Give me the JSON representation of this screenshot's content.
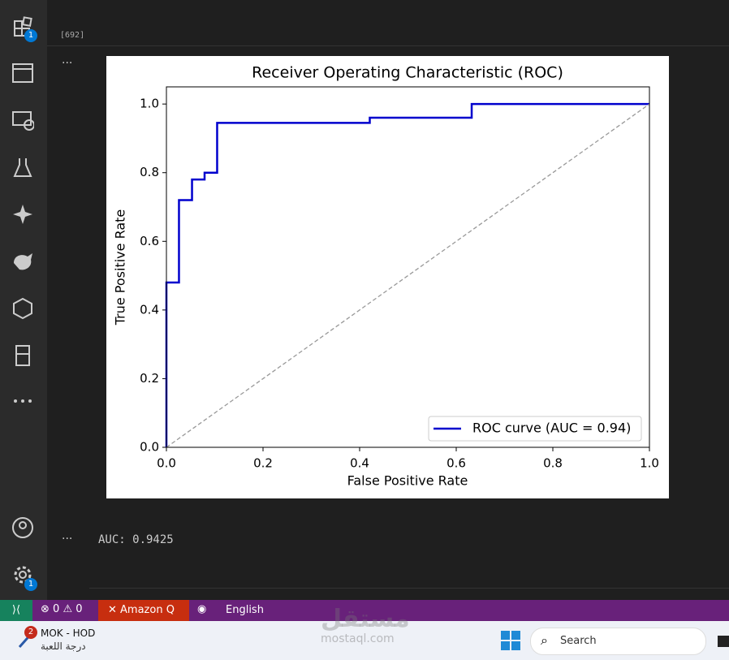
{
  "activity_bar": {
    "badges": [
      "1",
      "1"
    ]
  },
  "cell": {
    "execution_count": "[692]",
    "output_menus": [
      "···",
      "···"
    ],
    "output_text": "AUC: 0.9425"
  },
  "chart_data": {
    "type": "line",
    "title": "Receiver Operating Characteristic (ROC)",
    "x_label": "False Positive Rate",
    "y_label": "True Positive Rate",
    "xlim": [
      0,
      1
    ],
    "ylim": [
      0,
      1.05
    ],
    "xticks": [
      {
        "value": 0,
        "label": "0.0"
      },
      0.2,
      0.4,
      0.6,
      0.8,
      {
        "value": 1,
        "label": "1.0"
      }
    ],
    "yticks": [
      {
        "value": 0,
        "label": "0.0"
      },
      0.2,
      0.4,
      0.6,
      0.8,
      {
        "value": 1,
        "label": "1.0"
      }
    ],
    "legend": "lower right",
    "grid": false,
    "series": [
      {
        "name": "ROC curve (AUC = 0.94)",
        "color": "#0000cd",
        "line": "solid",
        "x": [
          0,
          0,
          0.026,
          0.026,
          0.053,
          0.053,
          0.079,
          0.079,
          0.105,
          0.105,
          0.421,
          0.421,
          0.632,
          0.632,
          1.0
        ],
        "values": [
          0,
          0.48,
          0.48,
          0.72,
          0.72,
          0.78,
          0.78,
          0.8,
          0.8,
          0.945,
          0.945,
          0.96,
          0.96,
          1.0,
          1.0
        ]
      },
      {
        "color": "#999999",
        "line": "dashed",
        "x": [
          0,
          1
        ],
        "values": [
          0,
          1
        ]
      }
    ]
  },
  "status_bar": {
    "errors": "0",
    "warnings": "0",
    "amazon_q": "Amazon Q",
    "language": "English"
  },
  "taskbar": {
    "app_title": "MOK - HOD",
    "app_subtitle": "درجة اللعبة",
    "app_badge": "2",
    "search": "Search"
  },
  "watermark": {
    "arabic": "مستقل",
    "site": "mostaql.com"
  }
}
